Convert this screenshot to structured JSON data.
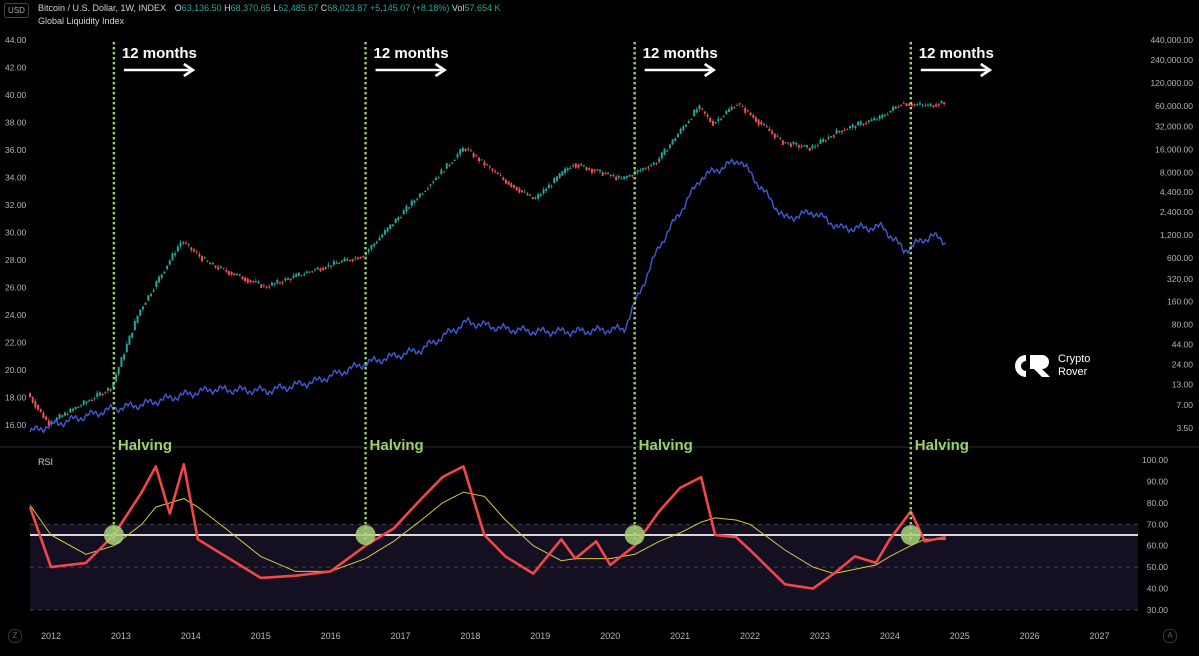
{
  "header": {
    "currency_button": "USD",
    "symbol_line": "Bitcoin / U.S. Dollar, 1W, INDEX",
    "open_label": "O",
    "open": "63,136.50",
    "high_label": "H",
    "high": "68,370.65",
    "low_label": "L",
    "low": "62,485.67",
    "close_label": "C",
    "close": "68,023.87",
    "change": "+5,145.07 (+8.18%)",
    "vol_label": "Vol",
    "vol": "57.654 K",
    "indicator_label": "Global Liquidity Index"
  },
  "rsi_label": "RSI",
  "watermark": {
    "line1": "Crypto",
    "line2": "Rover"
  },
  "corner_left": "Z",
  "corner_right": "A",
  "colors": {
    "price_up": "#26a69a",
    "price_down": "#ef5350",
    "liquidity": "#3e5bd8",
    "rsi": "#f04848",
    "rsi_ma": "#d8c84a",
    "halving_line": "#9bd36a",
    "annotation": "#ffffff"
  },
  "chart_data": [
    {
      "type": "line",
      "title": "",
      "x": [
        2011.7,
        2012.0,
        2012.9,
        2013.3,
        2013.9,
        2014.3,
        2015.1,
        2015.8,
        2016.5,
        2017.3,
        2017.95,
        2018.5,
        2018.95,
        2019.5,
        2020.2,
        2020.7,
        2021.3,
        2021.5,
        2021.85,
        2022.5,
        2022.9,
        2023.3,
        2023.9,
        2024.2,
        2024.6,
        2024.8
      ],
      "x_ticks": [
        "2012",
        "2013",
        "2014",
        "2015",
        "2016",
        "2017",
        "2018",
        "2019",
        "2020",
        "2021",
        "2022",
        "2023",
        "2024",
        "2025",
        "2026",
        "2027"
      ],
      "left_axis_ticks": [
        "44.00",
        "42.00",
        "40.00",
        "38.00",
        "36.00",
        "34.00",
        "32.00",
        "30.00",
        "28.00",
        "26.00",
        "24.00",
        "22.00",
        "20.00",
        "18.00",
        "16.00"
      ],
      "right_axis_ticks": [
        "440,000.00",
        "240,000.00",
        "120,000.00",
        "60,000.00",
        "32,000.00",
        "16,000.00",
        "8,000.00",
        "4,400.00",
        "2,400.00",
        "1,200.00",
        "600.00",
        "320.00",
        "160.00",
        "80.00",
        "44.00",
        "24.00",
        "13.00",
        "7.00",
        "3.50"
      ],
      "series": [
        {
          "name": "Bitcoin / U.S. Dollar",
          "axis": "right-log",
          "values": [
            10,
            4,
            12,
            120,
            1000,
            500,
            250,
            420,
            650,
            4000,
            17000,
            6500,
            3500,
            10500,
            6500,
            11000,
            58000,
            35000,
            65000,
            20000,
            16500,
            28000,
            42000,
            65000,
            60000,
            68000
          ]
        },
        {
          "name": "Global Liquidity Index",
          "axis": "left",
          "values": [
            15.5,
            16,
            17.2,
            17.5,
            18.2,
            18.6,
            18.5,
            19.2,
            20.5,
            21.5,
            23.5,
            23,
            22.8,
            22.8,
            23,
            29,
            34,
            34.5,
            35.3,
            31,
            31.5,
            30.3,
            30.4,
            28.7,
            29.8,
            29.3
          ]
        }
      ],
      "annotations": [
        {
          "x": 2012.9,
          "top": "12 months",
          "bottom": "Halving"
        },
        {
          "x": 2016.5,
          "top": "12 months",
          "bottom": "Halving"
        },
        {
          "x": 2020.35,
          "top": "12 months",
          "bottom": "Halving"
        },
        {
          "x": 2024.3,
          "top": "12 months",
          "bottom": "Halving"
        }
      ]
    },
    {
      "type": "line",
      "title": "RSI",
      "ylim": [
        25,
        105
      ],
      "y_ticks": [
        "100.00",
        "90.00",
        "80.00",
        "70.00",
        "60.00",
        "50.00",
        "40.00",
        "30.00"
      ],
      "bands": [
        30,
        50,
        70
      ],
      "level_line": 65,
      "x": [
        2011.7,
        2012.0,
        2012.5,
        2012.9,
        2013.3,
        2013.5,
        2013.7,
        2013.9,
        2014.1,
        2014.5,
        2015.0,
        2015.5,
        2016.0,
        2016.5,
        2016.9,
        2017.3,
        2017.6,
        2017.9,
        2018.2,
        2018.5,
        2018.9,
        2019.3,
        2019.5,
        2019.8,
        2020.0,
        2020.35,
        2020.7,
        2021.0,
        2021.3,
        2021.5,
        2021.8,
        2022.0,
        2022.5,
        2022.9,
        2023.2,
        2023.5,
        2023.8,
        2024.0,
        2024.3,
        2024.5,
        2024.8
      ],
      "series": [
        {
          "name": "",
          "values": [
            78,
            50,
            52,
            65,
            85,
            97,
            75,
            98,
            63,
            55,
            45,
            46,
            48,
            60,
            68,
            82,
            92,
            97,
            65,
            55,
            47,
            63,
            54,
            62,
            51,
            60,
            76,
            87,
            92,
            65,
            64,
            58,
            42,
            40,
            47,
            55,
            52,
            63,
            76,
            62,
            64
          ]
        },
        {
          "name": "",
          "values": [
            79,
            65,
            56,
            60,
            70,
            78,
            80,
            82,
            78,
            68,
            55,
            48,
            48,
            54,
            62,
            72,
            80,
            85,
            83,
            72,
            60,
            53,
            54,
            54,
            54,
            56,
            62,
            66,
            71,
            73,
            72,
            70,
            58,
            50,
            47,
            49,
            51,
            55,
            60,
            63,
            63
          ]
        }
      ],
      "markers_at_x": [
        2012.9,
        2016.5,
        2020.35,
        2024.3
      ]
    }
  ]
}
